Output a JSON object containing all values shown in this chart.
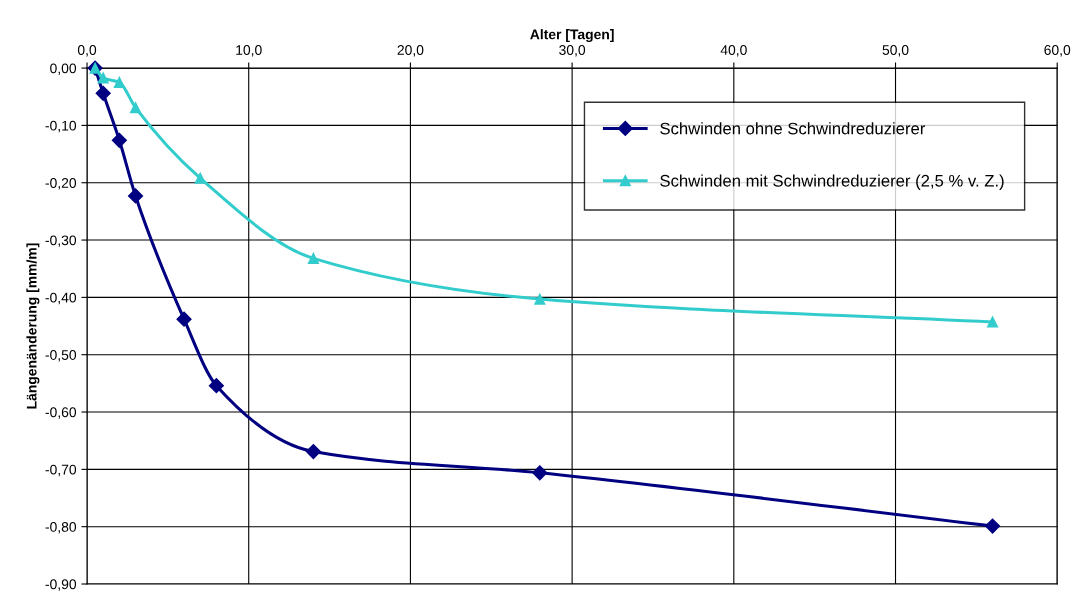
{
  "chart_data": {
    "type": "line",
    "xlabel": "Alter [Tagen]",
    "ylabel": "Längenänderung [mm/m]",
    "xlim": [
      0,
      60
    ],
    "ylim": [
      -0.9,
      0
    ],
    "xticks": [
      {
        "value": 0,
        "label": "0,0"
      },
      {
        "value": 10,
        "label": "10,0"
      },
      {
        "value": 20,
        "label": "20,0"
      },
      {
        "value": 30,
        "label": "30,0"
      },
      {
        "value": 40,
        "label": "40,0"
      },
      {
        "value": 50,
        "label": "50,0"
      },
      {
        "value": 60,
        "label": "60,0"
      }
    ],
    "yticks": [
      {
        "value": 0,
        "label": "0,00"
      },
      {
        "value": -0.1,
        "label": "-0,10"
      },
      {
        "value": -0.2,
        "label": "-0,20"
      },
      {
        "value": -0.3,
        "label": "-0,30"
      },
      {
        "value": -0.4,
        "label": "-0,40"
      },
      {
        "value": -0.5,
        "label": "-0,50"
      },
      {
        "value": -0.6,
        "label": "-0,60"
      },
      {
        "value": -0.7,
        "label": "-0,70"
      },
      {
        "value": -0.8,
        "label": "-0,80"
      },
      {
        "value": -0.9,
        "label": "-0,90"
      }
    ],
    "grid": true,
    "legend": "top right",
    "series": [
      {
        "name": "Schwinden ohne Schwindreduzierer",
        "color": "#000080",
        "marker": "diamond",
        "x": [
          0.5,
          1,
          2,
          3,
          6,
          8,
          14,
          28,
          56
        ],
        "values": [
          0.0,
          -0.044,
          -0.126,
          -0.223,
          -0.438,
          -0.554,
          -0.669,
          -0.706,
          -0.799
        ]
      },
      {
        "name": "Schwinden mit Schwindreduzierer (2,5 % v. Z.)",
        "color": "#33cccc",
        "marker": "triangle",
        "x": [
          0.5,
          1,
          2,
          3,
          7,
          14,
          28,
          56
        ],
        "values": [
          0.0,
          -0.017,
          -0.025,
          -0.069,
          -0.192,
          -0.332,
          -0.403,
          -0.443
        ]
      }
    ]
  }
}
